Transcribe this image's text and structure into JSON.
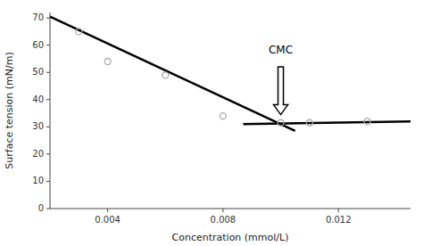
{
  "chart_data": {
    "type": "scatter",
    "xlabel": "Concentration (mmol/L)",
    "ylabel": "Surface tension (mN/m)",
    "xlim": [
      0.002,
      0.0145
    ],
    "ylim": [
      0,
      72
    ],
    "xticks": [
      0.004,
      0.008,
      0.012
    ],
    "yticks": [
      0,
      10,
      20,
      30,
      40,
      50,
      60,
      70
    ],
    "grid": false,
    "series": [
      {
        "type": "line",
        "color": "#000000",
        "x": [
          0.002,
          0.0105
        ],
        "values": [
          70.5,
          28.5
        ]
      },
      {
        "type": "line",
        "color": "#000000",
        "x": [
          0.0087,
          0.0145
        ],
        "values": [
          31.0,
          32.0
        ]
      },
      {
        "type": "scatter",
        "color": "#aaaaaa",
        "x": [
          0.003,
          0.004,
          0.006,
          0.008,
          0.01,
          0.011,
          0.013
        ],
        "values": [
          65.0,
          54.0,
          49.0,
          34.0,
          31.5,
          31.5,
          32.0
        ]
      }
    ],
    "annotations": [
      {
        "text": "CMC",
        "x": 0.01,
        "y": 57.0,
        "color": "#000000",
        "arrow": {
          "x": 0.01,
          "y_from": 52.0,
          "y_to": 34.5
        }
      }
    ]
  }
}
